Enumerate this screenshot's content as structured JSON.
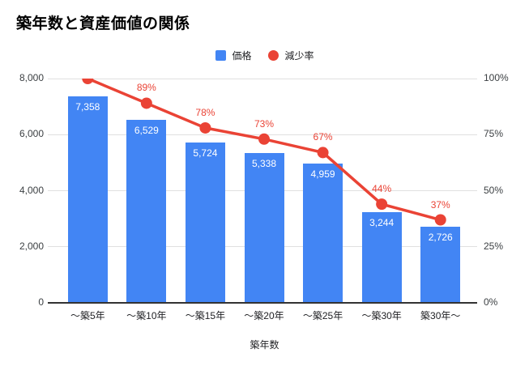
{
  "chart_data": {
    "type": "combo",
    "title": "築年数と資産価値の関係",
    "xlabel": "築年数",
    "ylabel_left": "",
    "ylabel_right": "",
    "legend_position": "top",
    "grid": true,
    "categories": [
      "～築5年",
      "～築10年",
      "～築15年",
      "～築20年",
      "～築25年",
      "～築30年",
      "築30年～"
    ],
    "series": [
      {
        "name": "価格",
        "type": "bar",
        "axis": "left",
        "color": "#4285f4",
        "label_color": "#ffffff",
        "values": [
          7358,
          6529,
          5724,
          5338,
          4959,
          3244,
          2726
        ],
        "labels": [
          "7,358",
          "6,529",
          "5,724",
          "5,338",
          "4,959",
          "3,244",
          "2,726"
        ]
      },
      {
        "name": "減少率",
        "type": "line",
        "axis": "right",
        "color": "#ea4335",
        "values": [
          100,
          89,
          78,
          73,
          67,
          44,
          37
        ],
        "labels": [
          "",
          "89%",
          "78%",
          "73%",
          "67%",
          "44%",
          "37%"
        ]
      }
    ],
    "y_left": {
      "min": 0,
      "max": 8000,
      "tick_values": [
        0,
        2000,
        4000,
        6000,
        8000
      ],
      "tick_labels": [
        "0",
        "2,000",
        "4,000",
        "6,000",
        "8,000"
      ]
    },
    "y_right": {
      "min": 0,
      "max": 100,
      "tick_values": [
        0,
        25,
        50,
        75,
        100
      ],
      "tick_labels": [
        "0%",
        "25%",
        "50%",
        "75%",
        "100%"
      ]
    },
    "palette": {
      "background": "#ffffff",
      "gridline": "#e0e0e0",
      "axis_line": "#333333",
      "axis_text": "#3c4043",
      "category_text": "#202124"
    }
  }
}
